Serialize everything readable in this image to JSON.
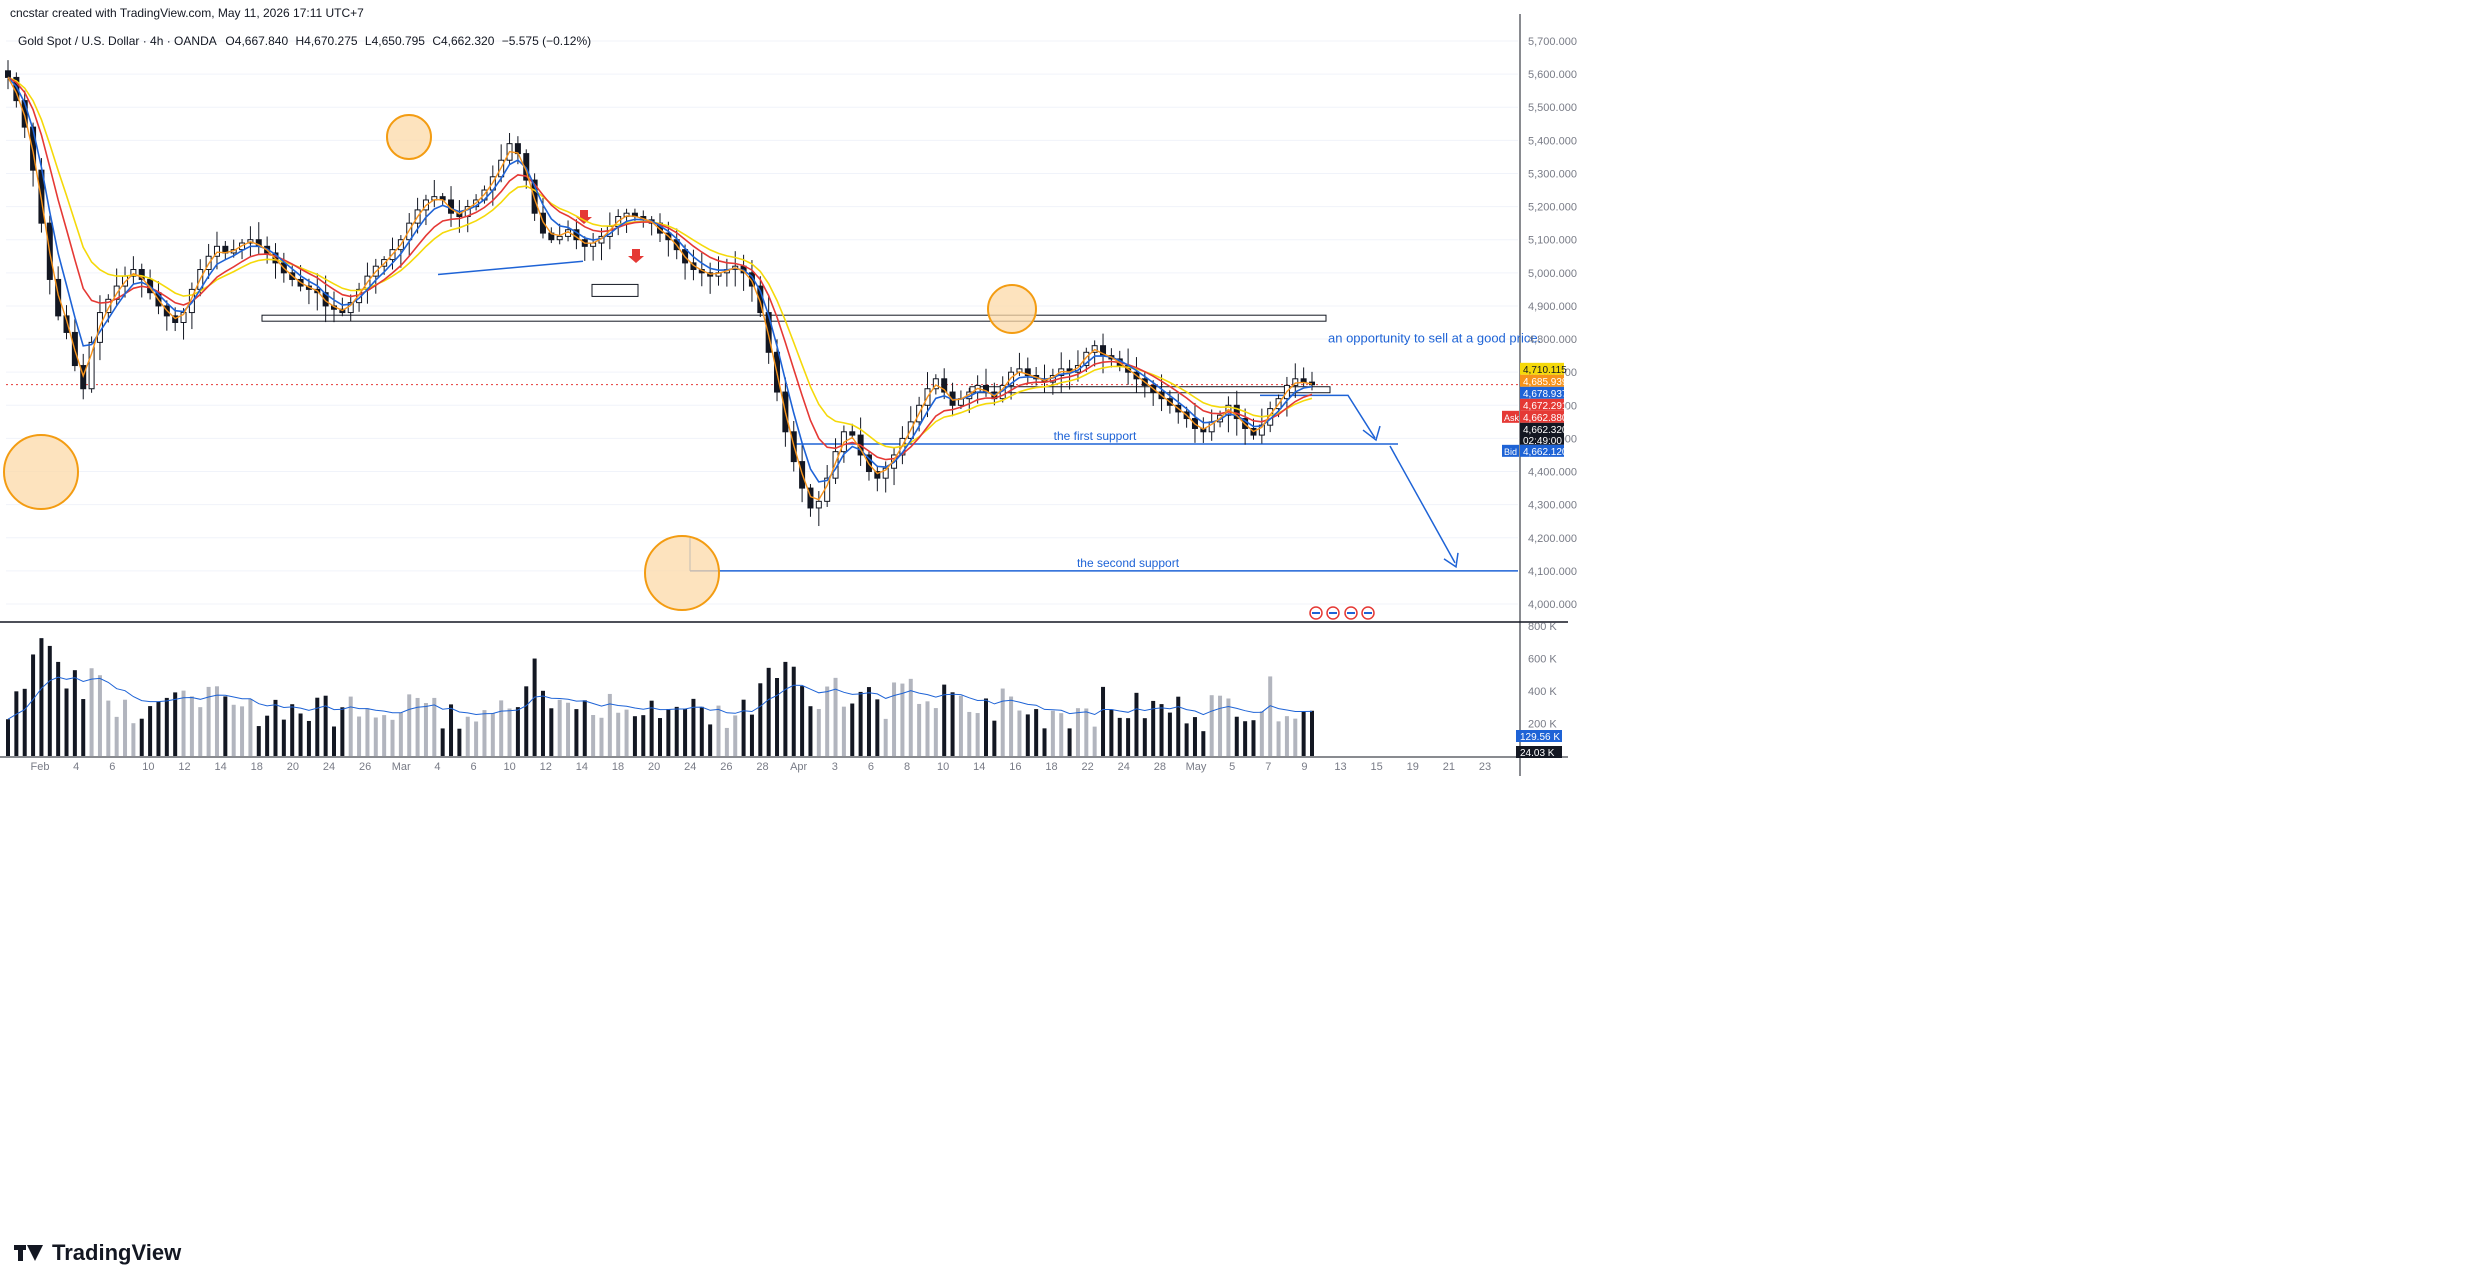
{
  "header": {
    "credit": "cncstar created with TradingView.com, May 11, 2026 17:11 UTC+7",
    "symbol": "Gold Spot / U.S. Dollar · 4h · OANDA",
    "open": "O",
    "open_value": "4,667.840",
    "high": "H",
    "high_value": "4,670.275",
    "low": "L",
    "low_value": "4,650.795",
    "close": "C",
    "close_value": "4,662.320",
    "change": "−5.575 (−0.12%)"
  },
  "watermark": "TradingView",
  "colors": {
    "up": "#131722",
    "down": "#131722",
    "ema_fast": "#f7931a",
    "ema_mid": "#1e63d6",
    "ema_slow": "#e53935",
    "ema_long": "#f5d90a",
    "support": "#1e63d6",
    "circle_fill": "#fcd9a8",
    "circle_stroke": "#f39c12",
    "arrow": "#e53935"
  },
  "chart_data": {
    "type": "candlestick",
    "y_axis": {
      "ticks": [
        "5,700.000",
        "5,600.000",
        "5,500.000",
        "5,400.000",
        "5,300.000",
        "5,200.000",
        "5,100.000",
        "5,000.000",
        "4,900.000",
        "4,800.000",
        "4,700.000",
        "4,600.000",
        "4,500.000",
        "4,400.000",
        "4,300.000",
        "4,200.000",
        "4,100.000",
        "4,000.000"
      ],
      "tick_values": [
        5700,
        5600,
        5500,
        5400,
        5300,
        5200,
        5100,
        5000,
        4900,
        4800,
        4700,
        4600,
        4500,
        4400,
        4300,
        4200,
        4100,
        4000
      ],
      "range": [
        3950,
        5760
      ]
    },
    "x_axis": {
      "labels": [
        "Feb",
        "4",
        "6",
        "10",
        "12",
        "14",
        "18",
        "20",
        "24",
        "26",
        "Mar",
        "4",
        "6",
        "10",
        "12",
        "14",
        "18",
        "20",
        "24",
        "26",
        "28",
        "Apr",
        "3",
        "6",
        "8",
        "10",
        "14",
        "16",
        "18",
        "22",
        "24",
        "28",
        "May",
        "5",
        "7",
        "9",
        "13",
        "15",
        "19",
        "21",
        "23"
      ]
    },
    "price_labels": [
      {
        "value": 4710.115,
        "text": "4,710.115",
        "color": "#f5d90a"
      },
      {
        "value": 4685.939,
        "text": "4,685.939",
        "color": "#f7931a"
      },
      {
        "value": 4678.937,
        "text": "4,678.937",
        "color": "#1e63d6"
      },
      {
        "value": 4672.291,
        "text": "4,672.291",
        "color": "#e53935"
      },
      {
        "value": 4662.88,
        "text": "4,662.880",
        "color": "#e53935",
        "tag": "Ask"
      },
      {
        "value": 4662.32,
        "text": "4,662.320",
        "color": "#131722",
        "sub": "02:49:00"
      },
      {
        "value": 4662.12,
        "text": "4,662.120",
        "color": "#1e63d6",
        "tag": "Bid"
      }
    ],
    "annotations": {
      "sell_note": "an opportunity to sell at a good price.",
      "first_support": "the first support",
      "second_support": "the second support"
    },
    "levels": [
      {
        "name": "first-support",
        "value": 4483
      },
      {
        "name": "second-support",
        "value": 4100
      },
      {
        "name": "upper-resistance",
        "value": 4863
      }
    ],
    "candles_close": [
      5590,
      5520,
      5440,
      5310,
      5150,
      4980,
      4870,
      4820,
      4720,
      4650,
      4790,
      4880,
      4920,
      4960,
      4990,
      5010,
      4980,
      4940,
      4900,
      4870,
      4850,
      4880,
      4950,
      5010,
      5050,
      5080,
      5060,
      5070,
      5090,
      5100,
      5080,
      5060,
      5030,
      5000,
      4980,
      4960,
      4950,
      4940,
      4900,
      4890,
      4880,
      4910,
      4950,
      4990,
      5020,
      5040,
      5070,
      5100,
      5150,
      5190,
      5220,
      5230,
      5220,
      5180,
      5170,
      5200,
      5220,
      5250,
      5290,
      5340,
      5390,
      5360,
      5280,
      5180,
      5120,
      5100,
      5110,
      5130,
      5100,
      5080,
      5090,
      5110,
      5140,
      5170,
      5180,
      5170,
      5160,
      5150,
      5120,
      5100,
      5070,
      5030,
      5010,
      5000,
      4990,
      5000,
      5010,
      5020,
      5000,
      4960,
      4880,
      4760,
      4640,
      4520,
      4430,
      4350,
      4290,
      4310,
      4380,
      4460,
      4520,
      4510,
      4450,
      4400,
      4380,
      4410,
      4450,
      4500,
      4550,
      4600,
      4650,
      4680,
      4640,
      4600,
      4620,
      4640,
      4660,
      4640,
      4620,
      4660,
      4700,
      4710,
      4690,
      4680,
      4670,
      4690,
      4710,
      4700,
      4720,
      4760,
      4780,
      4750,
      4740,
      4720,
      4700,
      4680,
      4660,
      4640,
      4620,
      4600,
      4580,
      4560,
      4530,
      4520,
      4550,
      4570,
      4600,
      4560,
      4530,
      4510,
      4540,
      4590,
      4620,
      4660,
      4680,
      4670,
      4662
    ],
    "volume": {
      "ticks": [
        "800 K",
        "600 K",
        "400 K",
        "200 K"
      ],
      "tick_values": [
        800,
        600,
        400,
        200
      ],
      "ma_label": "129.56 K",
      "last_label": "24.03 K"
    }
  }
}
